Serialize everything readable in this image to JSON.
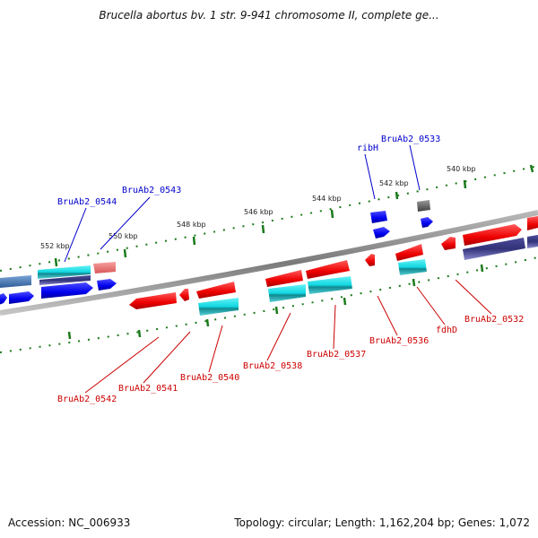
{
  "title": "Brucella abortus bv. 1 str. 9-941 chromosome II, complete ge...",
  "accession": "Accession: NC_006933",
  "topology": "Topology: circular; Length: 1,162,204 bp; Genes: 1,072",
  "scale_labels": [
    "552 kbp",
    "550 kbp",
    "548 kbp",
    "546 kbp",
    "544 kbp",
    "542 kbp",
    "540 kbp"
  ],
  "gene_labels_top": [
    "BruAb2_0544",
    "BruAb2_0543",
    "ribH",
    "BruAb2_0533"
  ],
  "gene_labels_bottom": [
    "BruAb2_0542",
    "BruAb2_0541",
    "BruAb2_0540",
    "BruAb2_0538",
    "BruAb2_0537",
    "BruAb2_0536",
    "fdhD",
    "BruAb2_0532"
  ],
  "colors": {
    "forward": "#0000ff",
    "reverse": "#ff0000",
    "cyan": "#00c8d2",
    "steel": "#4a7cbf",
    "indigo": "#3f3f8f",
    "pink": "#ef7777",
    "gray": "#777777",
    "label_blue": "#0000cc",
    "label_red": "#cc0000",
    "tick_green": "#1a7a1a"
  }
}
